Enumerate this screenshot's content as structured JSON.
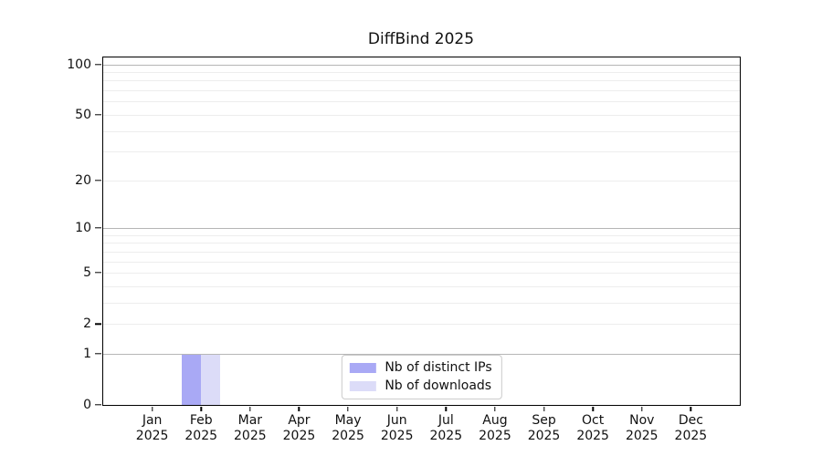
{
  "chart_data": {
    "type": "bar",
    "title": "DiffBind 2025",
    "categories": [
      "Jan",
      "Feb",
      "Mar",
      "Apr",
      "May",
      "Jun",
      "Jul",
      "Aug",
      "Sep",
      "Oct",
      "Nov",
      "Dec"
    ],
    "category_sublabel": "2025",
    "series": [
      {
        "name": "Nb of distinct IPs",
        "color": "#a9a9f5",
        "values": [
          0,
          1,
          0,
          0,
          0,
          0,
          0,
          0,
          0,
          0,
          0,
          0
        ]
      },
      {
        "name": "Nb of downloads",
        "color": "#dcdcf8",
        "values": [
          0,
          1,
          0,
          0,
          0,
          0,
          0,
          0,
          0,
          0,
          0,
          0
        ]
      }
    ],
    "xlabel": "",
    "ylabel": "",
    "yscale": "log1p",
    "ylim": [
      0,
      110
    ],
    "yticks": [
      0,
      1,
      2,
      5,
      10,
      20,
      50,
      100
    ],
    "major_gridlines": [
      1,
      10,
      100
    ],
    "minor_gridlines": [
      2,
      3,
      4,
      5,
      6,
      7,
      8,
      9,
      20,
      30,
      40,
      50,
      60,
      70,
      80,
      90
    ],
    "grid": "horizontal",
    "legend_position": "lower center"
  },
  "colors": {
    "background": "#ffffff",
    "axis": "#000000",
    "text": "#111111",
    "major_grid": "#b6b6b6",
    "minor_grid": "#ededed",
    "legend_border": "#cccccc"
  }
}
